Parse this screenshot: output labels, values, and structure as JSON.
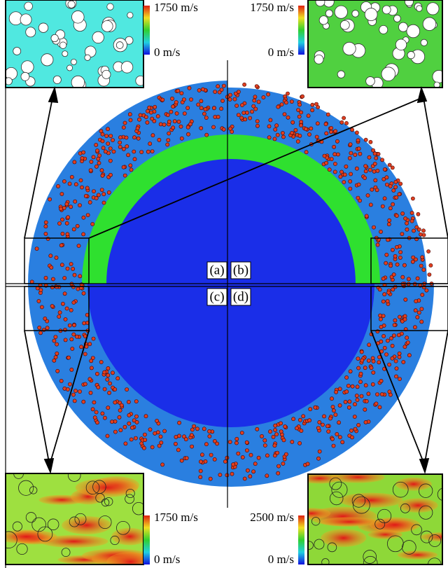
{
  "panels": [
    {
      "label": "(a)",
      "colorbar": {
        "max": "1750 m/s",
        "min": "0 m/s"
      }
    },
    {
      "label": "(b)",
      "colorbar": {
        "max": "1750 m/s",
        "min": "0 m/s"
      }
    },
    {
      "label": "(c)",
      "colorbar": {
        "max": "1750 m/s",
        "min": "0 m/s"
      }
    },
    {
      "label": "(d)",
      "colorbar": {
        "max": "2500 m/s",
        "min": "0 m/s"
      }
    }
  ]
}
